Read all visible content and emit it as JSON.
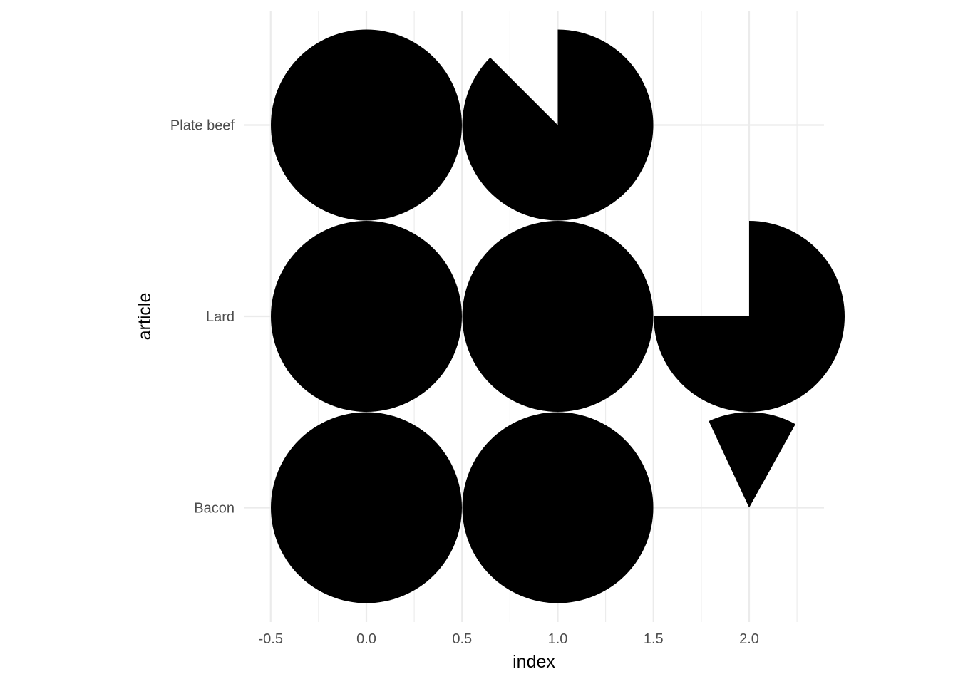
{
  "chart_data": {
    "type": "pie-glyph",
    "title": "",
    "xlabel": "index",
    "ylabel": "article",
    "xlim": [
      -0.5,
      2.4
    ],
    "xticks": [
      -0.5,
      0.0,
      0.5,
      1.0,
      1.5,
      2.0
    ],
    "xtick_labels": [
      "-0.5",
      "0.0",
      "0.5",
      "1.0",
      "1.5",
      "2.0"
    ],
    "categories": [
      "Bacon",
      "Lard",
      "Plate beef"
    ],
    "grid": true,
    "color": "#000000",
    "glyphs": [
      {
        "article": "Plate beef",
        "index": 0,
        "fraction": 1.0,
        "start_deg": 0
      },
      {
        "article": "Plate beef",
        "index": 1,
        "fraction": 0.875,
        "start_deg": 0
      },
      {
        "article": "Lard",
        "index": 0,
        "fraction": 1.0,
        "start_deg": 0
      },
      {
        "article": "Lard",
        "index": 1,
        "fraction": 1.0,
        "start_deg": 0
      },
      {
        "article": "Lard",
        "index": 2,
        "fraction": 0.75,
        "start_deg": 0
      },
      {
        "article": "Bacon",
        "index": 0,
        "fraction": 1.0,
        "start_deg": 0
      },
      {
        "article": "Bacon",
        "index": 1,
        "fraction": 1.0,
        "start_deg": 0
      },
      {
        "article": "Bacon",
        "index": 2,
        "fraction": 0.15,
        "start_deg": -25
      }
    ]
  }
}
